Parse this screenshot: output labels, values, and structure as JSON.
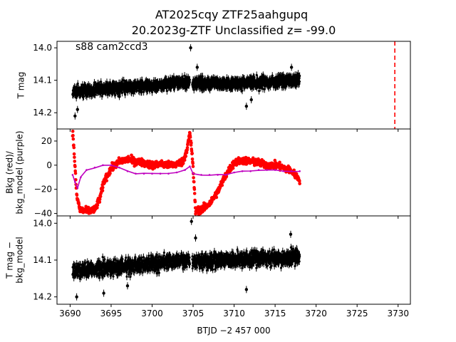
{
  "figure": {
    "title_line1": "AT2025cqy  ZTF25aahgupq",
    "title_line2": "20.2023g-ZTF Unclassified z= -99.0",
    "xlabel": "BTJD −2 457 000"
  },
  "chart_data": [
    {
      "type": "scatter",
      "panel": "top",
      "annotation": "s88 cam2ccd3",
      "ylabel": "T mag",
      "ylim": [
        14.25,
        13.98
      ],
      "inverted_y": true,
      "yticks": [
        14.0,
        14.1,
        14.2
      ],
      "ytick_labels": [
        "14.0",
        "14.1",
        "14.2"
      ],
      "xlim": [
        3688.4,
        3731.5
      ],
      "vline": {
        "x": 3729.6,
        "color": "#ff0000",
        "style": "dashed"
      },
      "series": [
        {
          "color": "#000000",
          "segments": [
            [
              3690.3,
              3704.6
            ],
            [
              3704.9,
              3718.0
            ]
          ],
          "trend_x": [
            3690.3,
            3695,
            3700,
            3704.6,
            3704.9,
            3710,
            3715,
            3718.0
          ],
          "trend_y": [
            14.135,
            14.125,
            14.115,
            14.105,
            14.11,
            14.11,
            14.105,
            14.1
          ],
          "scatter": 0.035,
          "outliers": [
            [
              3690.6,
              14.21
            ],
            [
              3690.9,
              14.19
            ],
            [
              3704.7,
              14.0
            ],
            [
              3705.5,
              14.06
            ],
            [
              3711.5,
              14.18
            ],
            [
              3712.1,
              14.16
            ],
            [
              3717.0,
              14.06
            ],
            [
              3696.0,
              14.15
            ]
          ]
        }
      ]
    },
    {
      "type": "scatter",
      "panel": "middle",
      "ylabel": "Bkg (red)/\nbkg_model (purple)",
      "ylim": [
        -42,
        30
      ],
      "yticks": [
        -40,
        -20,
        0,
        20
      ],
      "ytick_labels": [
        "−40",
        "−20",
        "0",
        "20"
      ],
      "xlim": [
        3688.4,
        3731.5
      ],
      "series": [
        {
          "color": "#ff0000",
          "x": [
            3690.3,
            3690.5,
            3690.8,
            3691.2,
            3692.0,
            3693.0,
            3693.6,
            3694.2,
            3695.0,
            3696.0,
            3697.0,
            3698.0,
            3699.0,
            3700.0,
            3701.0,
            3702.0,
            3703.0,
            3703.8,
            3704.3,
            3704.6,
            3704.9,
            3705.3,
            3706.0,
            3707.0,
            3708.0,
            3709.0,
            3710.0,
            3711.0,
            3712.0,
            3713.0,
            3714.0,
            3715.0,
            3716.0,
            3717.0,
            3718.0
          ],
          "y": [
            28,
            10,
            -25,
            -37,
            -38,
            -37,
            -28,
            -12,
            -3,
            3,
            5,
            3,
            2,
            0,
            1,
            0,
            1,
            3,
            15,
            26,
            8,
            -38,
            -37,
            -32,
            -22,
            -8,
            2,
            4,
            3,
            2,
            0,
            0,
            -2,
            -5,
            -12
          ],
          "scatter": 3.0
        },
        {
          "color": "#bf00bf",
          "x": [
            3690.3,
            3690.6,
            3690.9,
            3691.3,
            3692.0,
            3693.0,
            3694.0,
            3695.0,
            3696.0,
            3697.0,
            3698.0,
            3699.0,
            3700.0,
            3701.0,
            3702.0,
            3703.0,
            3704.0,
            3704.6,
            3705.0,
            3706.0,
            3707.0,
            3708.0,
            3709.0,
            3710.0,
            3711.0,
            3712.0,
            3713.0,
            3714.0,
            3715.0,
            3716.0,
            3717.0,
            3718.0
          ],
          "y": [
            -8,
            -14,
            -19,
            -10,
            -4,
            -2,
            0,
            0,
            -2,
            -5,
            -7,
            -7,
            -7,
            -7,
            -7,
            -6,
            -4,
            -1,
            -7,
            -8,
            -8,
            -8,
            -8,
            -6,
            -5,
            -5,
            -4,
            -4,
            -4,
            -5,
            -5,
            -5
          ]
        }
      ]
    },
    {
      "type": "scatter",
      "panel": "bottom",
      "ylabel": "T mag −\nbkg_model",
      "ylim": [
        14.22,
        13.98
      ],
      "inverted_y": true,
      "yticks": [
        14.0,
        14.1,
        14.2
      ],
      "ytick_labels": [
        "14.0",
        "14.1",
        "14.2"
      ],
      "xlim": [
        3688.4,
        3731.5
      ],
      "xticks": [
        3690,
        3695,
        3700,
        3705,
        3710,
        3715,
        3720,
        3725,
        3730
      ],
      "xtick_labels": [
        "3690",
        "3695",
        "3700",
        "3705",
        "3710",
        "3715",
        "3720",
        "3725",
        "3730"
      ],
      "series": [
        {
          "color": "#000000",
          "segments": [
            [
              3690.3,
              3704.6
            ],
            [
              3704.9,
              3718.0
            ]
          ],
          "trend_x": [
            3690.3,
            3695,
            3700,
            3704.6,
            3704.9,
            3710,
            3715,
            3718.0
          ],
          "trend_y": [
            14.13,
            14.12,
            14.11,
            14.1,
            14.105,
            14.1,
            14.095,
            14.09
          ],
          "scatter": 0.04,
          "outliers": [
            [
              3690.8,
              14.2
            ],
            [
              3694.1,
              14.19
            ],
            [
              3704.8,
              13.995
            ],
            [
              3705.3,
              14.04
            ],
            [
              3711.5,
              14.18
            ],
            [
              3716.9,
              14.03
            ],
            [
              3697.0,
              14.17
            ]
          ]
        }
      ]
    }
  ]
}
